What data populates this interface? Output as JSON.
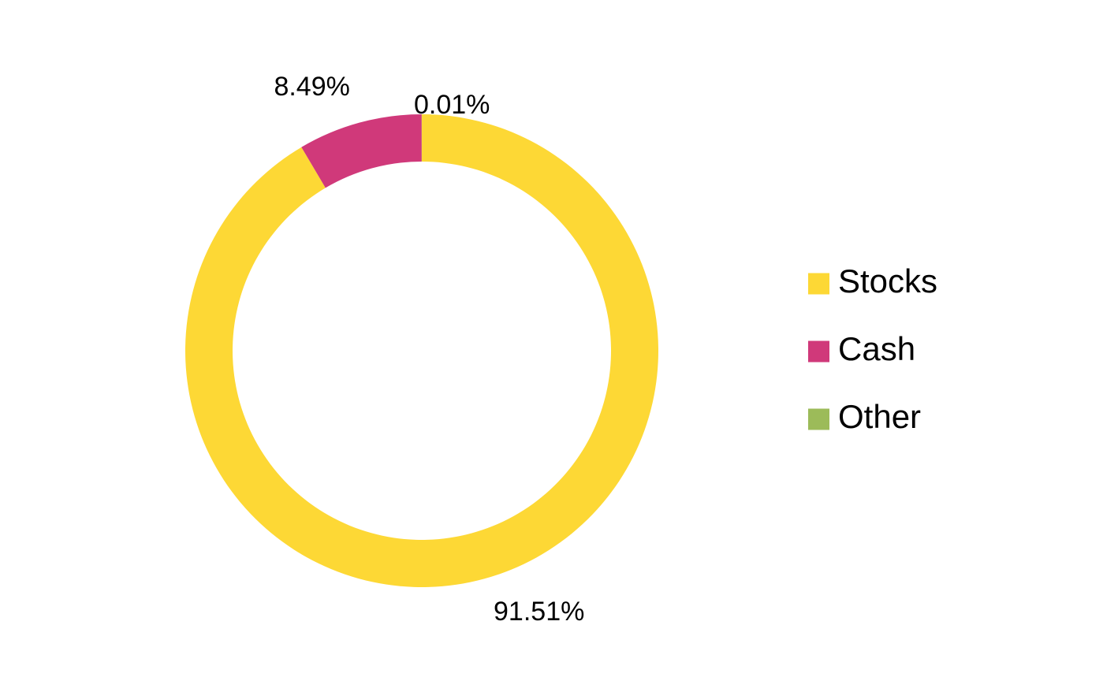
{
  "chart_data": {
    "type": "pie",
    "variant": "donut",
    "categories": [
      "Stocks",
      "Cash",
      "Other"
    ],
    "values": [
      91.51,
      8.49,
      0.01
    ],
    "data_labels": [
      "91.51%",
      "8.49%",
      "0.01%"
    ],
    "colors": [
      "#FDD835",
      "#D0397A",
      "#9CBB59"
    ],
    "legend": {
      "position": "right",
      "entries": [
        "Stocks",
        "Cash",
        "Other"
      ]
    },
    "title": ""
  }
}
